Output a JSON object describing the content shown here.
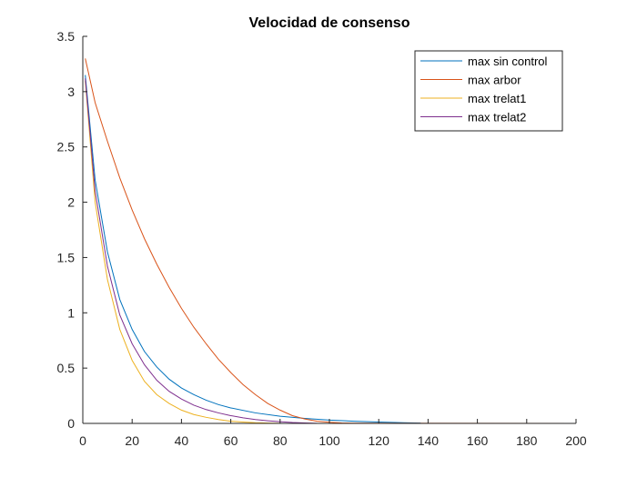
{
  "chart_data": {
    "type": "line",
    "title": "Velocidad de consenso",
    "xlabel": "",
    "ylabel": "",
    "xlim": [
      0,
      200
    ],
    "ylim": [
      0,
      3.5
    ],
    "xticks": [
      0,
      20,
      40,
      60,
      80,
      100,
      120,
      140,
      160,
      180,
      200
    ],
    "yticks": [
      0,
      0.5,
      1,
      1.5,
      2,
      2.5,
      3,
      3.5
    ],
    "xtick_labels": [
      "0",
      "20",
      "40",
      "60",
      "80",
      "100",
      "120",
      "140",
      "160",
      "180",
      "200"
    ],
    "ytick_labels": [
      "0",
      "0.5",
      "1",
      "1.5",
      "2",
      "2.5",
      "3",
      "3.5"
    ],
    "grid": false,
    "legend_position": "top-right",
    "series": [
      {
        "name": "max sin control",
        "color": "#0072BD",
        "points": [
          [
            1,
            3.15
          ],
          [
            5,
            2.2
          ],
          [
            10,
            1.55
          ],
          [
            15,
            1.12
          ],
          [
            20,
            0.85
          ],
          [
            25,
            0.65
          ],
          [
            30,
            0.51
          ],
          [
            35,
            0.4
          ],
          [
            40,
            0.32
          ],
          [
            45,
            0.26
          ],
          [
            50,
            0.21
          ],
          [
            55,
            0.17
          ],
          [
            60,
            0.14
          ],
          [
            70,
            0.095
          ],
          [
            80,
            0.065
          ],
          [
            90,
            0.045
          ],
          [
            100,
            0.03
          ],
          [
            110,
            0.02
          ],
          [
            120,
            0.012
          ],
          [
            130,
            0.006
          ],
          [
            137,
            0.003
          ]
        ]
      },
      {
        "name": "max arbor",
        "color": "#D95319",
        "points": [
          [
            1,
            3.3
          ],
          [
            5,
            2.9
          ],
          [
            10,
            2.55
          ],
          [
            15,
            2.22
          ],
          [
            20,
            1.93
          ],
          [
            25,
            1.67
          ],
          [
            30,
            1.44
          ],
          [
            35,
            1.23
          ],
          [
            40,
            1.04
          ],
          [
            45,
            0.87
          ],
          [
            50,
            0.72
          ],
          [
            55,
            0.58
          ],
          [
            60,
            0.46
          ],
          [
            65,
            0.35
          ],
          [
            70,
            0.26
          ],
          [
            75,
            0.18
          ],
          [
            80,
            0.12
          ],
          [
            85,
            0.07
          ],
          [
            90,
            0.04
          ],
          [
            95,
            0.02
          ],
          [
            100,
            0.01
          ],
          [
            105,
            0.004
          ],
          [
            110,
            0.002
          ],
          [
            200,
            0.0
          ]
        ]
      },
      {
        "name": "max trelat1",
        "color": "#EDB120",
        "points": [
          [
            1,
            3.1
          ],
          [
            5,
            2.0
          ],
          [
            10,
            1.3
          ],
          [
            15,
            0.85
          ],
          [
            20,
            0.57
          ],
          [
            25,
            0.38
          ],
          [
            30,
            0.26
          ],
          [
            35,
            0.18
          ],
          [
            40,
            0.12
          ],
          [
            45,
            0.08
          ],
          [
            50,
            0.055
          ],
          [
            55,
            0.035
          ],
          [
            60,
            0.02
          ],
          [
            65,
            0.012
          ],
          [
            70,
            0.006
          ],
          [
            75,
            0.003
          ],
          [
            80,
            0.001
          ]
        ]
      },
      {
        "name": "max trelat2",
        "color": "#7E2F8E",
        "points": [
          [
            1,
            3.12
          ],
          [
            5,
            2.1
          ],
          [
            10,
            1.42
          ],
          [
            15,
            0.98
          ],
          [
            20,
            0.72
          ],
          [
            25,
            0.53
          ],
          [
            30,
            0.39
          ],
          [
            35,
            0.29
          ],
          [
            40,
            0.22
          ],
          [
            45,
            0.165
          ],
          [
            50,
            0.125
          ],
          [
            55,
            0.095
          ],
          [
            60,
            0.07
          ],
          [
            65,
            0.05
          ],
          [
            70,
            0.035
          ],
          [
            75,
            0.024
          ],
          [
            80,
            0.015
          ],
          [
            85,
            0.008
          ],
          [
            90,
            0.004
          ],
          [
            95,
            0.001
          ]
        ]
      }
    ]
  }
}
